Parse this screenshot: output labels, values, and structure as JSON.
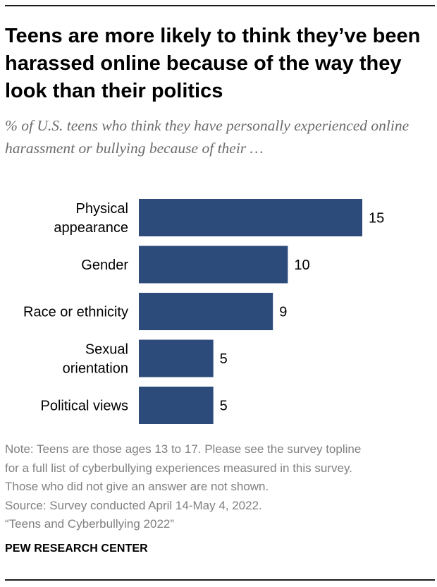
{
  "title": "Teens are more likely to think they’ve been harassed online because of the way they look than their politics",
  "subtitle": "% of U.S. teens who think they have personally experienced online harassment or bullying because of their …",
  "chart_data": {
    "type": "bar",
    "orientation": "horizontal",
    "categories": [
      [
        "Physical",
        "appearance"
      ],
      [
        "Gender"
      ],
      [
        "Race or ethnicity"
      ],
      [
        "Sexual",
        "orientation"
      ],
      [
        "Political views"
      ]
    ],
    "values": [
      15,
      10,
      9,
      5,
      5
    ],
    "value_labels": [
      "15",
      "10",
      "9",
      "5",
      "5"
    ],
    "xlim": [
      0,
      15
    ],
    "bar_color": "#2c4b7a",
    "grid": false
  },
  "notes": [
    "Note: Teens are those ages 13 to 17. Please see the survey topline",
    "for a full list of cyberbullying experiences measured in this survey.",
    "Those who did not give an answer are not shown.",
    "Source: Survey conducted April 14-May 4, 2022.",
    "“Teens and Cyberbullying 2022”"
  ],
  "source_label": "PEW RESEARCH CENTER"
}
